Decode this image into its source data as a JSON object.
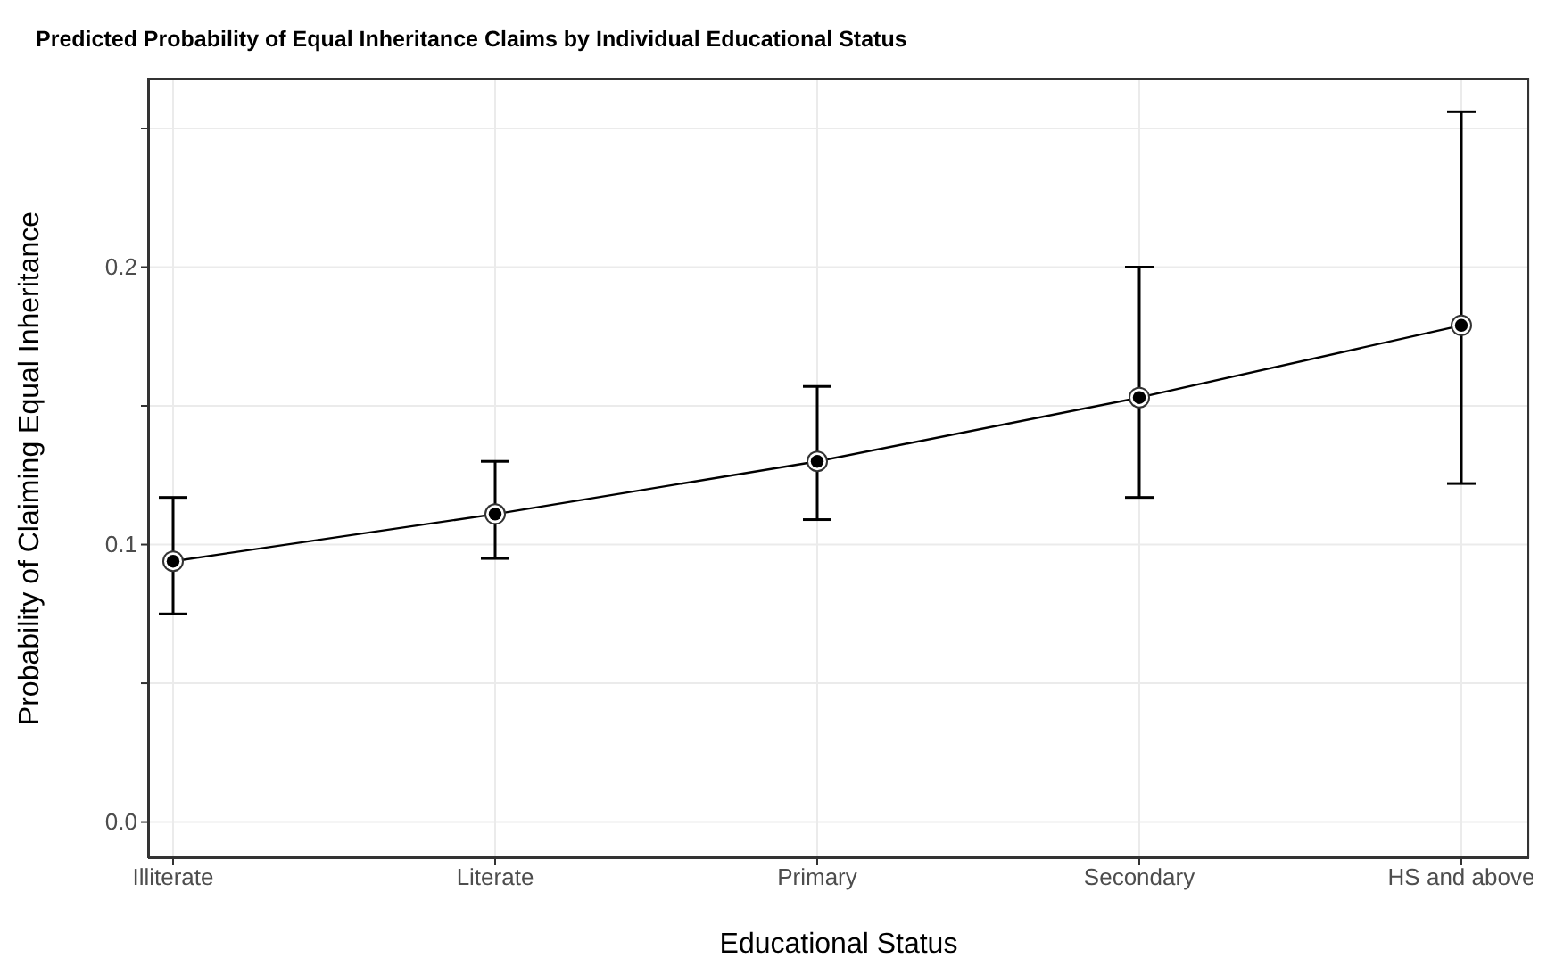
{
  "chart_data": {
    "type": "line",
    "title": "Predicted Probability of Equal Inheritance Claims by Individual Educational Status",
    "xlabel": "Educational Status",
    "ylabel": "Probability of Claiming Equal Inheritance",
    "categories": [
      "Illiterate",
      "Literate",
      "Primary",
      "Secondary",
      "HS and above"
    ],
    "series": [
      {
        "color": "#000000",
        "values": [
          0.094,
          0.111,
          0.13,
          0.153,
          0.179
        ],
        "errors": [
          [
            0.075,
            0.117
          ],
          [
            0.095,
            0.13
          ],
          [
            0.109,
            0.157
          ],
          [
            0.117,
            0.2
          ],
          [
            0.122,
            0.256
          ]
        ]
      }
    ],
    "ylim": [
      -0.013,
      0.268
    ],
    "yticks": [
      {
        "value": 0,
        "label": "0.0"
      },
      {
        "value": 0.05,
        "label": null
      },
      {
        "value": 0.1,
        "label": "0.1"
      },
      {
        "value": 0.15,
        "label": null
      },
      {
        "value": 0.2,
        "label": "0.2"
      },
      {
        "value": 0.25,
        "label": null
      }
    ],
    "grid": true,
    "marker": "circle",
    "line_style": "solid"
  }
}
